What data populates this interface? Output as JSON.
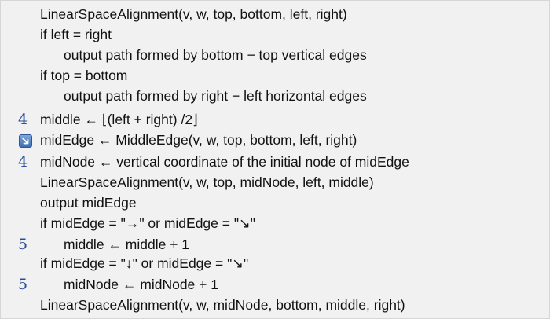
{
  "pseudocode": {
    "lines": [
      {
        "text": "LinearSpaceAlignment(v, w, top, bottom, left, right)",
        "gutter": ""
      },
      {
        "text": "if left = right",
        "gutter": ""
      },
      {
        "text": "output path formed by bottom − top vertical edges",
        "gutter": ""
      },
      {
        "text": "if top = bottom",
        "gutter": ""
      },
      {
        "text": "output path formed by right − left horizontal edges",
        "gutter": ""
      },
      {
        "text": "middle ← ⌊(left + right) /2⌋",
        "gutter": "4"
      },
      {
        "text": "midEdge ← MiddleEdge(v, w, top, bottom, left, right)",
        "gutter": ""
      },
      {
        "text": "midNode ← vertical coordinate of the initial node of midEdge",
        "gutter": "4"
      },
      {
        "text": "LinearSpaceAlignment(v, w, top, midNode, left, middle)",
        "gutter": ""
      },
      {
        "text": "output midEdge",
        "gutter": ""
      },
      {
        "text": "if midEdge = \"→\" or midEdge = \"↘\"",
        "gutter": ""
      },
      {
        "text": "middle ← middle + 1",
        "gutter": "5"
      },
      {
        "text": "if midEdge = \"↓\" or midEdge = \"↘\"",
        "gutter": ""
      },
      {
        "text": "midNode ← midNode + 1",
        "gutter": "5"
      },
      {
        "text": "LinearSpaceAlignment(v, w, midNode, bottom, middle, right)",
        "gutter": ""
      }
    ]
  },
  "gutter_icon": {
    "icon": "arrow-down-right-icon",
    "color": "#3d6db4"
  },
  "colors": {
    "background": "#f1f1f1",
    "text": "#111111",
    "gutter_numbers": "#2a4e9a"
  }
}
